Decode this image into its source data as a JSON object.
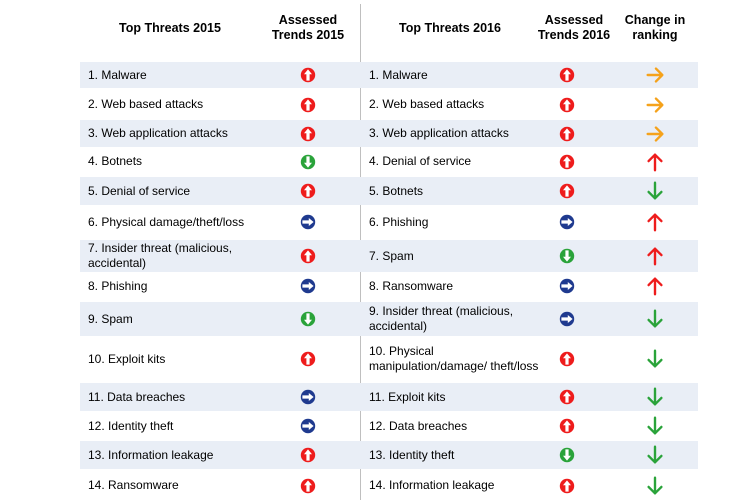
{
  "headers": {
    "top2015": "Top Threats 2015",
    "trends2015": "Assessed\nTrends 2015",
    "top2016": "Top Threats 2016",
    "trends2016": "Assessed\nTrends 2016",
    "change": "Change in\nranking"
  },
  "colors": {
    "up": "#ee1c1c",
    "down": "#2aa33a",
    "stable": "#1f3a8f",
    "change_same": "#f5a21b",
    "change_up": "#ee1c1c",
    "change_down": "#2aa33a",
    "row_shade": "#e9eef6"
  },
  "rows": [
    {
      "t2015": "1. Malware",
      "tr2015": "up",
      "t2016": "1. Malware",
      "tr2016": "up",
      "change": "same"
    },
    {
      "t2015": "2. Web based attacks",
      "tr2015": "up",
      "t2016": "2. Web based attacks",
      "tr2016": "up",
      "change": "same"
    },
    {
      "t2015": "3. Web application attacks",
      "tr2015": "up",
      "t2016": "3. Web application attacks",
      "tr2016": "up",
      "change": "same"
    },
    {
      "t2015": "4. Botnets",
      "tr2015": "down",
      "t2016": "4. Denial of service",
      "tr2016": "up",
      "change": "up"
    },
    {
      "t2015": "5. Denial of service",
      "tr2015": "up",
      "t2016": "5. Botnets",
      "tr2016": "up",
      "change": "down"
    },
    {
      "t2015": "6. Physical damage/theft/loss",
      "tr2015": "stable",
      "t2016": "6. Phishing",
      "tr2016": "stable",
      "change": "up"
    },
    {
      "t2015": "7. Insider threat (malicious, accidental)",
      "tr2015": "up",
      "t2016": "7. Spam",
      "tr2016": "down",
      "change": "up"
    },
    {
      "t2015": "8. Phishing",
      "tr2015": "stable",
      "t2016": "8. Ransomware",
      "tr2016": "stable",
      "change": "up"
    },
    {
      "t2015": "9. Spam",
      "tr2015": "down",
      "t2016": "9. Insider threat (malicious, accidental)",
      "tr2016": "stable",
      "change": "down"
    },
    {
      "t2015": "10. Exploit kits",
      "tr2015": "up",
      "t2016": "10. Physical manipulation/damage/ theft/loss",
      "tr2016": "up",
      "change": "down"
    },
    {
      "t2015": "11. Data breaches",
      "tr2015": "stable",
      "t2016": "11. Exploit kits",
      "tr2016": "up",
      "change": "down"
    },
    {
      "t2015": "12. Identity theft",
      "tr2015": "stable",
      "t2016": "12. Data breaches",
      "tr2016": "up",
      "change": "down"
    },
    {
      "t2015": "13. Information leakage",
      "tr2015": "up",
      "t2016": "13. Identity theft",
      "tr2016": "down",
      "change": "down"
    },
    {
      "t2015": "14. Ransomware",
      "tr2015": "up",
      "t2016": "14. Information leakage",
      "tr2016": "up",
      "change": "down"
    }
  ]
}
